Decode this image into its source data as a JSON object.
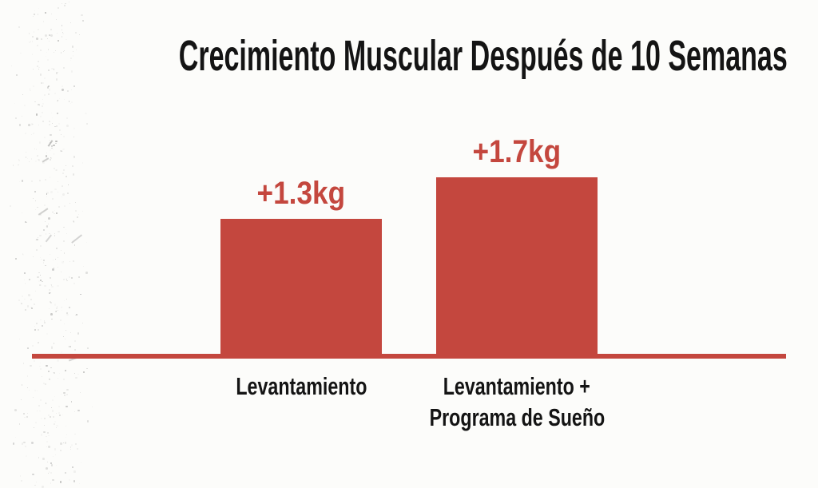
{
  "title": "Crecimiento Muscular Después de 10 Semanas",
  "chart_data": {
    "type": "bar",
    "title": "Crecimiento Muscular Después de 10 Semanas",
    "categories": [
      "Levantamiento",
      "Levantamiento + Programa de Sueño"
    ],
    "category_lines": [
      [
        "Levantamiento"
      ],
      [
        "Levantamiento +",
        "Programa de Sueño"
      ]
    ],
    "values": [
      1.3,
      1.7
    ],
    "value_labels": [
      "+1.3kg",
      "+1.7kg"
    ],
    "unit": "kg",
    "ylabel": "",
    "xlabel": "",
    "ylim": [
      0,
      1.8
    ],
    "grid": false,
    "legend": false,
    "bar_color": "#c4473e",
    "axis_color": "#c4473e",
    "value_label_color": "#c4473e",
    "category_label_color": "#141414",
    "title_color": "#141414",
    "background_color": "#fcfcfa"
  }
}
